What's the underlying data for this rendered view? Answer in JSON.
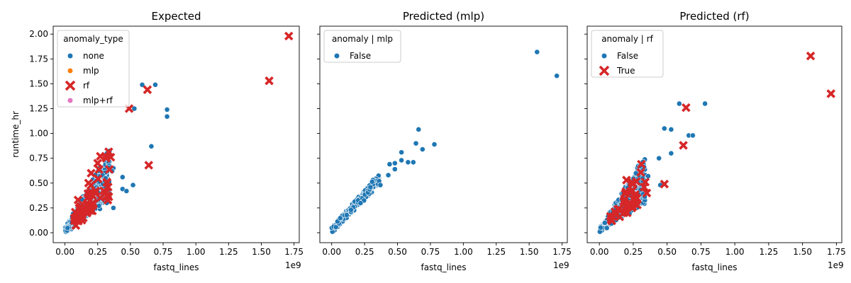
{
  "colors": {
    "none": "#1f77b4",
    "mlp": "#ff7f0e",
    "rf": "#d62728",
    "mlp_rf": "#e377c2",
    "point_edge": "#ffffff"
  },
  "chart_data": [
    {
      "type": "scatter",
      "title": "Expected",
      "xlabel": "fastq_lines",
      "ylabel": "runtime_hr",
      "x_offset_label": "1e9",
      "xlim": [
        -0.09,
        1.79
      ],
      "ylim": [
        -0.1,
        2.08
      ],
      "x_ticks": [
        0,
        0.25,
        0.5,
        0.75,
        1.0,
        1.25,
        1.5,
        1.75
      ],
      "x_tick_labels": [
        "0.00",
        "0.25",
        "0.50",
        "0.75",
        "1.00",
        "1.25",
        "1.50",
        "1.75"
      ],
      "y_ticks": [
        0,
        0.25,
        0.5,
        0.75,
        1.0,
        1.25,
        1.5,
        1.75,
        2.0
      ],
      "y_tick_labels": [
        "0.00",
        "0.25",
        "0.50",
        "0.75",
        "1.00",
        "1.25",
        "1.50",
        "1.75",
        "2.00"
      ],
      "grid": false,
      "legend": {
        "title": "anomaly_type",
        "placement": "top-left",
        "entries": [
          {
            "label": "none",
            "marker": "circle",
            "color_key": "none"
          },
          {
            "label": "mlp",
            "marker": "circle",
            "color_key": "mlp"
          },
          {
            "label": "rf",
            "marker": "x",
            "color_key": "rf"
          },
          {
            "label": "mlp+rf",
            "marker": "circle",
            "color_key": "mlp_rf"
          }
        ]
      },
      "series": [
        {
          "label": "none",
          "marker": "circle",
          "color_key": "none",
          "points": [
            [
              0.59,
              1.49
            ],
            [
              0.69,
              1.49
            ],
            [
              0.78,
              1.24
            ],
            [
              0.78,
              1.17
            ],
            [
              0.53,
              1.25
            ],
            [
              0.66,
              0.87
            ],
            [
              0.44,
              0.56
            ],
            [
              0.44,
              0.44
            ],
            [
              0.47,
              0.42
            ],
            [
              0.52,
              0.48
            ],
            [
              0.37,
              0.65
            ],
            [
              0.36,
              0.62
            ],
            [
              0.37,
              0.25
            ],
            [
              0.32,
              0.3
            ],
            [
              0.34,
              0.35
            ],
            [
              0.31,
              0.55
            ]
          ]
        },
        {
          "label": "rf",
          "marker": "x",
          "color_key": "rf",
          "points": [
            [
              1.71,
              1.98
            ],
            [
              1.56,
              1.53
            ],
            [
              0.63,
              1.44
            ],
            [
              0.49,
              1.25
            ],
            [
              0.64,
              0.68
            ],
            [
              0.27,
              0.77
            ],
            [
              0.31,
              0.77
            ],
            [
              0.35,
              0.76
            ],
            [
              0.25,
              0.7
            ],
            [
              0.2,
              0.6
            ],
            [
              0.33,
              0.46
            ],
            [
              0.18,
              0.5
            ],
            [
              0.1,
              0.33
            ],
            [
              0.21,
              0.22
            ],
            [
              0.14,
              0.15
            ],
            [
              0.23,
              0.4
            ]
          ]
        }
      ],
      "cluster": {
        "label": "none",
        "count": 420,
        "x_range": [
          0.0,
          0.34
        ],
        "slope_range": [
          0.9,
          2.4
        ],
        "rf_share": 0.13
      }
    },
    {
      "type": "scatter",
      "title": "Predicted (mlp)",
      "xlabel": "fastq_lines",
      "ylabel": "",
      "x_offset_label": "1e9",
      "xlim": [
        -0.09,
        1.79
      ],
      "ylim": [
        -0.1,
        2.08
      ],
      "x_ticks": [
        0,
        0.25,
        0.5,
        0.75,
        1.0,
        1.25,
        1.5,
        1.75
      ],
      "x_tick_labels": [
        "0.00",
        "0.25",
        "0.50",
        "0.75",
        "1.00",
        "1.25",
        "1.50",
        "1.75"
      ],
      "y_ticks": [
        0,
        0.25,
        0.5,
        0.75,
        1.0,
        1.25,
        1.5,
        1.75,
        2.0
      ],
      "y_tick_labels": [],
      "grid": false,
      "legend": {
        "title": "anomaly | mlp",
        "placement": "top-left",
        "entries": [
          {
            "label": "False",
            "marker": "circle",
            "color_key": "none"
          }
        ]
      },
      "series": [
        {
          "label": "False",
          "marker": "circle",
          "color_key": "none",
          "points": [
            [
              1.56,
              1.82
            ],
            [
              1.71,
              1.58
            ],
            [
              0.66,
              1.04
            ],
            [
              0.64,
              0.9
            ],
            [
              0.78,
              0.89
            ],
            [
              0.69,
              0.84
            ],
            [
              0.53,
              0.81
            ],
            [
              0.53,
              0.73
            ],
            [
              0.58,
              0.71
            ],
            [
              0.62,
              0.71
            ],
            [
              0.44,
              0.69
            ],
            [
              0.48,
              0.7
            ],
            [
              0.48,
              0.64
            ],
            [
              0.43,
              0.58
            ],
            [
              0.36,
              0.52
            ],
            [
              0.37,
              0.48
            ]
          ]
        }
      ],
      "cluster": {
        "label": "False",
        "count": 260,
        "x_range": [
          0.0,
          0.36
        ],
        "slope_range": [
          1.35,
          1.55
        ],
        "rf_share": 0
      }
    },
    {
      "type": "scatter",
      "title": "Predicted (rf)",
      "xlabel": "fastq_lines",
      "ylabel": "",
      "x_offset_label": "1e9",
      "xlim": [
        -0.09,
        1.79
      ],
      "ylim": [
        -0.1,
        2.08
      ],
      "x_ticks": [
        0,
        0.25,
        0.5,
        0.75,
        1.0,
        1.25,
        1.5,
        1.75
      ],
      "x_tick_labels": [
        "0.00",
        "0.25",
        "0.50",
        "0.75",
        "1.00",
        "1.25",
        "1.50",
        "1.75"
      ],
      "y_ticks": [
        0,
        0.25,
        0.5,
        0.75,
        1.0,
        1.25,
        1.5,
        1.75,
        2.0
      ],
      "y_tick_labels": [],
      "grid": false,
      "legend": {
        "title": "anomaly | rf",
        "placement": "top-left",
        "entries": [
          {
            "label": "False",
            "marker": "circle",
            "color_key": "none"
          },
          {
            "label": "True",
            "marker": "x",
            "color_key": "rf"
          }
        ]
      },
      "series": [
        {
          "label": "False",
          "marker": "circle",
          "color_key": "none",
          "points": [
            [
              0.59,
              1.3
            ],
            [
              0.78,
              1.3
            ],
            [
              0.48,
              1.05
            ],
            [
              0.53,
              1.04
            ],
            [
              0.66,
              0.98
            ],
            [
              0.69,
              0.98
            ],
            [
              0.53,
              0.8
            ],
            [
              0.44,
              0.75
            ],
            [
              0.36,
              0.57
            ],
            [
              0.45,
              0.48
            ],
            [
              0.3,
              0.67
            ],
            [
              0.27,
              0.6
            ],
            [
              0.32,
              0.55
            ]
          ]
        },
        {
          "label": "True",
          "marker": "x",
          "color_key": "rf",
          "points": [
            [
              1.56,
              1.78
            ],
            [
              1.71,
              1.4
            ],
            [
              0.64,
              1.26
            ],
            [
              0.62,
              0.88
            ],
            [
              0.48,
              0.49
            ],
            [
              0.31,
              0.69
            ],
            [
              0.35,
              0.4
            ],
            [
              0.2,
              0.53
            ],
            [
              0.33,
              0.46
            ],
            [
              0.25,
              0.34
            ],
            [
              0.18,
              0.2
            ],
            [
              0.24,
              0.25
            ],
            [
              0.15,
              0.16
            ],
            [
              0.28,
              0.28
            ]
          ]
        }
      ],
      "cluster": {
        "label": "False",
        "count": 420,
        "x_range": [
          0.0,
          0.34
        ],
        "slope_range": [
          0.9,
          2.2
        ],
        "rf_share": 0.1
      }
    }
  ]
}
